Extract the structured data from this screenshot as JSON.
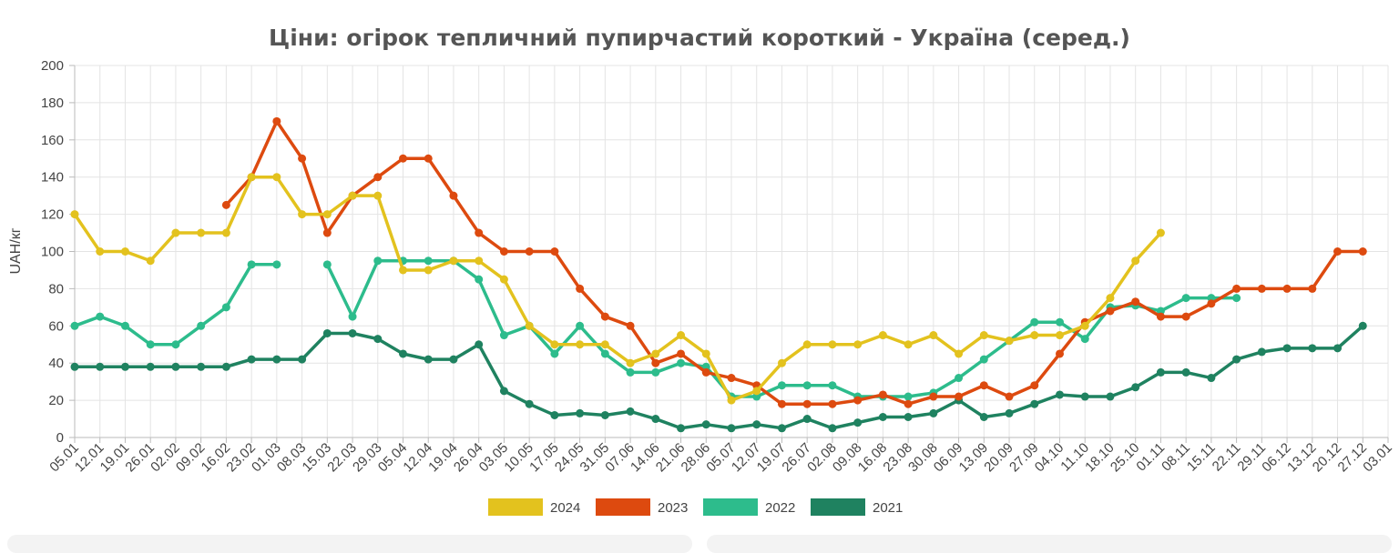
{
  "chart_data": {
    "type": "line",
    "title": "Ціни: огірок тепличний пупирчастий короткий - Україна (серед.)",
    "ylabel": "UAH/кг",
    "xlabel": "",
    "ylim": [
      0,
      200
    ],
    "yticks": [
      0,
      20,
      40,
      60,
      80,
      100,
      120,
      140,
      160,
      180,
      200
    ],
    "grid": true,
    "legend_position": "bottom",
    "categories": [
      "05.01",
      "12.01",
      "19.01",
      "26.01",
      "02.02",
      "09.02",
      "16.02",
      "23.02",
      "01.03",
      "08.03",
      "15.03",
      "22.03",
      "29.03",
      "05.04",
      "12.04",
      "19.04",
      "26.04",
      "03.05",
      "10.05",
      "17.05",
      "24.05",
      "31.05",
      "07.06",
      "14.06",
      "21.06",
      "28.06",
      "05.07",
      "12.07",
      "19.07",
      "26.07",
      "02.08",
      "09.08",
      "16.08",
      "23.08",
      "30.08",
      "06.09",
      "13.09",
      "20.09",
      "27.09",
      "04.10",
      "11.10",
      "18.10",
      "25.10",
      "01.11",
      "08.11",
      "15.11",
      "22.11",
      "29.11",
      "06.12",
      "13.12",
      "20.12",
      "27.12",
      "03.01"
    ],
    "series": [
      {
        "name": "2024",
        "color": "#e3c21e",
        "values": [
          120,
          100,
          100,
          95,
          110,
          110,
          110,
          140,
          140,
          120,
          120,
          130,
          130,
          90,
          90,
          95,
          95,
          85,
          60,
          50,
          50,
          50,
          40,
          45,
          55,
          45,
          20,
          25,
          40,
          50,
          50,
          50,
          55,
          50,
          55,
          45,
          55,
          52,
          55,
          55,
          60,
          75,
          95,
          110,
          null,
          null,
          null,
          null,
          null,
          null,
          null,
          null,
          null
        ]
      },
      {
        "name": "2023",
        "color": "#dd4a0f",
        "values": [
          null,
          null,
          null,
          null,
          null,
          null,
          125,
          140,
          170,
          150,
          110,
          130,
          140,
          150,
          150,
          130,
          110,
          100,
          100,
          100,
          80,
          65,
          60,
          40,
          45,
          35,
          32,
          28,
          18,
          18,
          18,
          20,
          23,
          18,
          22,
          22,
          28,
          22,
          28,
          45,
          62,
          68,
          73,
          65,
          65,
          72,
          80,
          80,
          80,
          80,
          100,
          100,
          null
        ]
      },
      {
        "name": "2022",
        "color": "#2dbc8c",
        "values": [
          60,
          65,
          60,
          50,
          50,
          60,
          70,
          93,
          93,
          null,
          93,
          65,
          95,
          95,
          95,
          95,
          85,
          55,
          60,
          45,
          60,
          45,
          35,
          35,
          40,
          38,
          22,
          22,
          28,
          28,
          28,
          22,
          22,
          22,
          24,
          32,
          42,
          52,
          62,
          62,
          53,
          70,
          71,
          68,
          75,
          75,
          75,
          null,
          null,
          null,
          null,
          null,
          null
        ]
      },
      {
        "name": "2021",
        "color": "#1f8260",
        "values": [
          38,
          38,
          38,
          38,
          38,
          38,
          38,
          42,
          42,
          42,
          56,
          56,
          53,
          45,
          42,
          42,
          50,
          25,
          18,
          12,
          13,
          12,
          14,
          10,
          5,
          7,
          5,
          7,
          5,
          10,
          5,
          8,
          11,
          11,
          13,
          20,
          11,
          13,
          18,
          23,
          22,
          22,
          27,
          35,
          35,
          32,
          42,
          46,
          48,
          48,
          48,
          60,
          null
        ]
      }
    ]
  }
}
